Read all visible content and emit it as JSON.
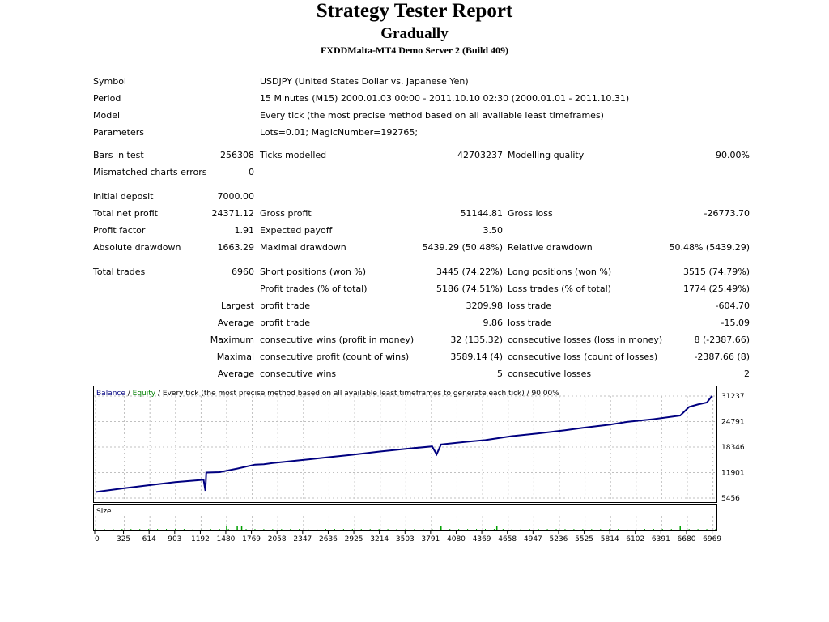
{
  "report": {
    "title": "Strategy Tester Report",
    "expert": "Gradually",
    "server": "FXDDMalta-MT4 Demo Server 2 (Build 409)"
  },
  "info_rows": [
    {
      "label": "Symbol",
      "value": "USDJPY (United States Dollar vs. Japanese Yen)"
    },
    {
      "label": "Period",
      "value": "15 Minutes (M15) 2000.01.03 00:00 - 2011.10.10 02:30 (2000.01.01 - 2011.10.31)"
    },
    {
      "label": "Model",
      "value": "Every tick (the most precise method based on all available least timeframes)"
    },
    {
      "label": "Parameters",
      "value": "Lots=0.01; MagicNumber=192765;"
    }
  ],
  "stats_rows": [
    [
      {
        "label": "Bars in test",
        "value": "256308"
      },
      {
        "label": "Ticks modelled",
        "value": "42703237"
      },
      {
        "label": "Modelling quality",
        "value": "90.00%"
      }
    ],
    [
      {
        "label": "Mismatched charts errors",
        "value": "0"
      }
    ],
    [
      {
        "label": "Initial deposit",
        "value": "7000.00"
      }
    ],
    [
      {
        "label": "Total net profit",
        "value": "24371.12"
      },
      {
        "label": "Gross profit",
        "value": "51144.81"
      },
      {
        "label": "Gross loss",
        "value": "-26773.70"
      }
    ],
    [
      {
        "label": "Profit factor",
        "value": "1.91"
      },
      {
        "label": "Expected payoff",
        "value": "3.50"
      }
    ],
    [
      {
        "label": "Absolute drawdown",
        "value": "1663.29"
      },
      {
        "label": "Maximal drawdown",
        "value": "5439.29 (50.48%)"
      },
      {
        "label": "Relative drawdown",
        "value": "50.48% (5439.29)"
      }
    ],
    [
      {
        "label": "Total trades",
        "value": "6960"
      },
      {
        "label": "Short positions (won %)",
        "value": "3445 (74.22%)"
      },
      {
        "label": "Long positions (won %)",
        "value": "3515 (74.79%)"
      }
    ]
  ],
  "trade_rows": [
    {
      "prefix": "",
      "l1": "Profit trades (% of total)",
      "v1": "5186 (74.51%)",
      "l2": "Loss trades (% of total)",
      "v2": "1774 (25.49%)"
    },
    {
      "prefix": "Largest",
      "l1": "profit trade",
      "v1": "3209.98",
      "l2": "loss trade",
      "v2": "-604.70"
    },
    {
      "prefix": "Average",
      "l1": "profit trade",
      "v1": "9.86",
      "l2": "loss trade",
      "v2": "-15.09"
    },
    {
      "prefix": "Maximum",
      "l1": "consecutive wins (profit in money)",
      "v1": "32 (135.32)",
      "l2": "consecutive losses (loss in money)",
      "v2": "8 (-2387.66)"
    },
    {
      "prefix": "Maximal",
      "l1": "consecutive profit (count of wins)",
      "v1": "3589.14 (4)",
      "l2": "consecutive loss (count of losses)",
      "v2": "-2387.66 (8)"
    },
    {
      "prefix": "Average",
      "l1": "consecutive wins",
      "v1": "5",
      "l2": "consecutive losses",
      "v2": "2"
    }
  ],
  "chart_data": {
    "type": "line",
    "legend": {
      "balance": "Balance",
      "sep1": " / ",
      "equity": "Equity",
      "rest": " / Every tick (the most precise method based on all available least timeframes to generate each tick) / 90.00%"
    },
    "colors": {
      "balance": "#000080",
      "equity": "#008000",
      "legend_balance": "#000080",
      "grid": "#c0c0c0",
      "size_bars": "#00a000"
    },
    "y_ticks": [
      31237,
      24791,
      18346,
      11901,
      5456
    ],
    "ylim": [
      5456,
      31237
    ],
    "x_ticks": [
      0,
      325,
      614,
      903,
      1192,
      1480,
      1769,
      2058,
      2347,
      2636,
      2925,
      3214,
      3503,
      3791,
      4080,
      4369,
      4658,
      4947,
      5236,
      5525,
      5814,
      6102,
      6391,
      6680,
      6969
    ],
    "xlim": [
      0,
      7000
    ],
    "size_label": "Size",
    "series": [
      {
        "name": "Balance",
        "x": [
          0,
          300,
          600,
          900,
          1180,
          1220,
          1240,
          1250,
          1400,
          1600,
          1800,
          1900,
          2000,
          2300,
          2600,
          2900,
          3200,
          3500,
          3800,
          3850,
          3900,
          4200,
          4400,
          4700,
          5000,
          5300,
          5500,
          5800,
          6000,
          6300,
          6600,
          6700,
          6800,
          6900,
          6960
        ],
        "y": [
          7000,
          7900,
          8700,
          9500,
          10000,
          10100,
          7300,
          11900,
          12000,
          12900,
          13900,
          14000,
          14300,
          15000,
          15700,
          16400,
          17200,
          17900,
          18500,
          16500,
          19000,
          19700,
          20100,
          21100,
          21800,
          22600,
          23200,
          24000,
          24700,
          25400,
          26300,
          28500,
          29100,
          29600,
          31300
        ]
      }
    ],
    "size_spikes": [
      1480,
      1600,
      1650,
      3900,
      4530,
      6600
    ]
  }
}
